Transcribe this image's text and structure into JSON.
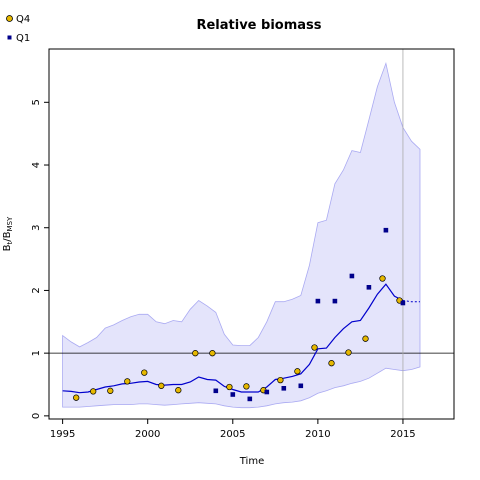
{
  "chart_data": {
    "type": "line",
    "title": "Relative biomass",
    "xlabel": "Time",
    "ylabel_main": "B",
    "ylabel_sub1": "t",
    "ylabel_mid": "/B",
    "ylabel_sub2": "MSY",
    "xlim": [
      1994.2,
      2018.0
    ],
    "ylim": [
      -0.05,
      5.85
    ],
    "xticks": [
      1995,
      2000,
      2005,
      2010,
      2015
    ],
    "yticks": [
      0,
      1,
      2,
      3,
      4,
      5
    ],
    "grid": false,
    "legend_position": "top-left",
    "reference_hline": 1,
    "reference_vline": 2015,
    "colors": {
      "median": "#0000cc",
      "band_fill": "#e4e4fb",
      "band_stroke": "#aaaaf2",
      "q4_fill": "#e6b800",
      "q1_fill": "#00008b",
      "reference": "#000000",
      "vline": "#aaaaaa"
    },
    "series": [
      {
        "name": "Q4",
        "marker": "circle",
        "x": [
          1995.8,
          1996.8,
          1997.8,
          1998.8,
          1999.8,
          2000.8,
          2001.8,
          2002.8,
          2003.8,
          2004.8,
          2005.8,
          2006.8,
          2007.8,
          2008.8,
          2009.8,
          2010.8,
          2011.8,
          2012.8,
          2013.8,
          2014.8
        ],
        "values": [
          0.29,
          0.39,
          0.4,
          0.55,
          0.69,
          0.48,
          0.41,
          1.0,
          1.0,
          0.46,
          0.47,
          0.41,
          0.57,
          0.71,
          1.09,
          0.84,
          1.01,
          1.23,
          2.19,
          1.84
        ]
      },
      {
        "name": "Q1",
        "marker": "square",
        "x": [
          2004.0,
          2005.0,
          2006.0,
          2007.0,
          2008.0,
          2009.0,
          2010.0,
          2011.0,
          2012.0,
          2013.0,
          2014.0,
          2015.0
        ],
        "values": [
          0.4,
          0.34,
          0.27,
          0.38,
          0.44,
          0.48,
          1.83,
          1.83,
          2.23,
          2.05,
          2.96,
          1.8
        ]
      }
    ],
    "median": {
      "x": [
        1995.0,
        1995.5,
        1996.0,
        1996.5,
        1997.0,
        1997.5,
        1998.0,
        1998.5,
        1999.0,
        1999.5,
        2000.0,
        2000.5,
        2001.0,
        2001.5,
        2002.0,
        2002.5,
        2003.0,
        2003.5,
        2004.0,
        2004.5,
        2005.0,
        2005.5,
        2006.0,
        2006.5,
        2007.0,
        2007.5,
        2008.0,
        2008.5,
        2009.0,
        2009.5,
        2010.0,
        2010.5,
        2011.0,
        2011.5,
        2012.0,
        2012.5,
        2013.0,
        2013.5,
        2014.0,
        2014.5,
        2015.0
      ],
      "values": [
        0.4,
        0.39,
        0.37,
        0.38,
        0.42,
        0.46,
        0.48,
        0.51,
        0.52,
        0.54,
        0.55,
        0.5,
        0.49,
        0.5,
        0.5,
        0.54,
        0.62,
        0.58,
        0.57,
        0.47,
        0.42,
        0.38,
        0.38,
        0.38,
        0.46,
        0.58,
        0.6,
        0.63,
        0.67,
        0.82,
        1.07,
        1.08,
        1.25,
        1.39,
        1.5,
        1.52,
        1.72,
        1.94,
        2.1,
        1.91,
        1.84
      ]
    },
    "projection": {
      "x": [
        2015.0,
        2015.5,
        2016.0
      ],
      "values": [
        1.84,
        1.82,
        1.82
      ]
    },
    "band": {
      "x": [
        1995.0,
        1995.5,
        1996.0,
        1996.5,
        1997.0,
        1997.5,
        1998.0,
        1998.5,
        1999.0,
        1999.5,
        2000.0,
        2000.5,
        2001.0,
        2001.5,
        2002.0,
        2002.5,
        2003.0,
        2003.5,
        2004.0,
        2004.5,
        2005.0,
        2005.5,
        2006.0,
        2006.5,
        2007.0,
        2007.5,
        2008.0,
        2008.5,
        2009.0,
        2009.5,
        2010.0,
        2010.5,
        2011.0,
        2011.5,
        2012.0,
        2012.5,
        2013.0,
        2013.5,
        2014.0,
        2014.5,
        2015.0,
        2015.5,
        2016.0
      ],
      "upper": [
        1.28,
        1.18,
        1.1,
        1.17,
        1.25,
        1.4,
        1.45,
        1.52,
        1.58,
        1.62,
        1.62,
        1.5,
        1.47,
        1.52,
        1.5,
        1.7,
        1.84,
        1.75,
        1.65,
        1.3,
        1.13,
        1.12,
        1.12,
        1.25,
        1.5,
        1.82,
        1.82,
        1.86,
        1.92,
        2.4,
        3.08,
        3.12,
        3.7,
        3.92,
        4.23,
        4.2,
        4.72,
        5.25,
        5.62,
        5.0,
        4.6,
        4.38,
        4.25
      ],
      "lower": [
        0.14,
        0.14,
        0.14,
        0.15,
        0.16,
        0.17,
        0.18,
        0.18,
        0.18,
        0.19,
        0.19,
        0.18,
        0.17,
        0.18,
        0.19,
        0.2,
        0.21,
        0.2,
        0.19,
        0.16,
        0.14,
        0.13,
        0.13,
        0.14,
        0.16,
        0.19,
        0.21,
        0.22,
        0.24,
        0.29,
        0.36,
        0.4,
        0.45,
        0.48,
        0.52,
        0.55,
        0.6,
        0.68,
        0.76,
        0.74,
        0.72,
        0.74,
        0.78
      ]
    }
  }
}
